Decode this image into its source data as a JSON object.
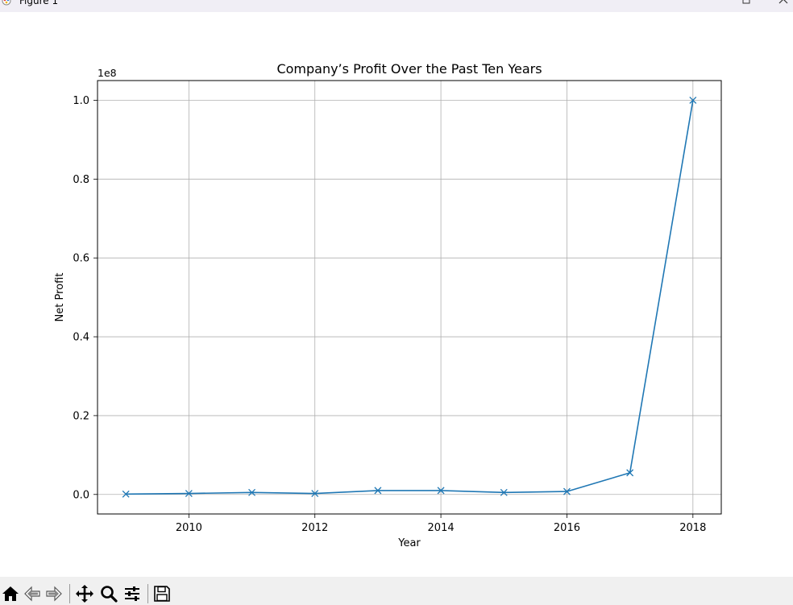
{
  "window": {
    "title": "Figure 1"
  },
  "toolbar": {
    "buttons": [
      "home-icon",
      "back-arrow-icon",
      "forward-arrow-icon",
      "pan-icon",
      "zoom-icon",
      "configure-subplots-icon",
      "save-icon"
    ]
  },
  "colors": {
    "line": "#1f77b4",
    "grid": "#b0b0b0",
    "toolbar_bg": "#f0f0f0",
    "titlebar_bg": "#f0eef5"
  },
  "chart_data": {
    "type": "line",
    "title": "Company’s Profit Over the Past Ten Years",
    "xlabel": "Year",
    "ylabel": "Net Profit",
    "y_offset_label": "1e8",
    "x": [
      2009,
      2010,
      2011,
      2012,
      2013,
      2014,
      2015,
      2016,
      2017,
      2018
    ],
    "series": [
      {
        "values": [
          100000,
          250000,
          500000,
          250000,
          1000000,
          1000000,
          500000,
          750000,
          5500000,
          100000000
        ],
        "marker": "x"
      }
    ],
    "xlim": [
      2008.55,
      2018.45
    ],
    "ylim": [
      -4950000,
      105000000
    ],
    "x_ticks": [
      2010,
      2012,
      2014,
      2016,
      2018
    ],
    "x_tick_labels": [
      "2010",
      "2012",
      "2014",
      "2016",
      "2018"
    ],
    "y_ticks": [
      0,
      20000000,
      40000000,
      60000000,
      80000000,
      100000000
    ],
    "y_tick_labels": [
      "0.0",
      "0.2",
      "0.4",
      "0.6",
      "0.8",
      "1.0"
    ],
    "grid": true,
    "legend": "none"
  }
}
